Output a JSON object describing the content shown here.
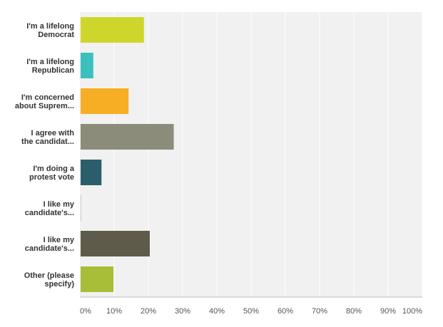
{
  "chart_data": {
    "type": "bar",
    "orientation": "horizontal",
    "categories": [
      [
        "I'm a lifelong",
        "Democrat"
      ],
      [
        "I'm a lifelong",
        "Republican"
      ],
      [
        "I'm concerned",
        "about Suprem..."
      ],
      [
        "I agree with",
        "the candidat..."
      ],
      [
        "I'm doing a",
        "protest vote"
      ],
      [
        "I like my",
        "candidate's..."
      ],
      [
        "I like my",
        "candidate's..."
      ],
      [
        "Other (please",
        "specify)"
      ]
    ],
    "values": [
      18.5,
      3.7,
      14.0,
      27.2,
      6.1,
      0.2,
      20.2,
      9.6
    ],
    "colors": [
      "#cfd62b",
      "#3bbfbf",
      "#f7ae24",
      "#8c8c7b",
      "#2b5e6b",
      "#cccccc",
      "#5e5b4b",
      "#a9be38"
    ],
    "x_ticks": [
      "0%",
      "10%",
      "20%",
      "30%",
      "40%",
      "50%",
      "60%",
      "70%",
      "80%",
      "90%",
      "100%"
    ],
    "xlim": [
      0,
      100
    ],
    "title": "",
    "xlabel": "",
    "ylabel": "",
    "grid": true
  }
}
